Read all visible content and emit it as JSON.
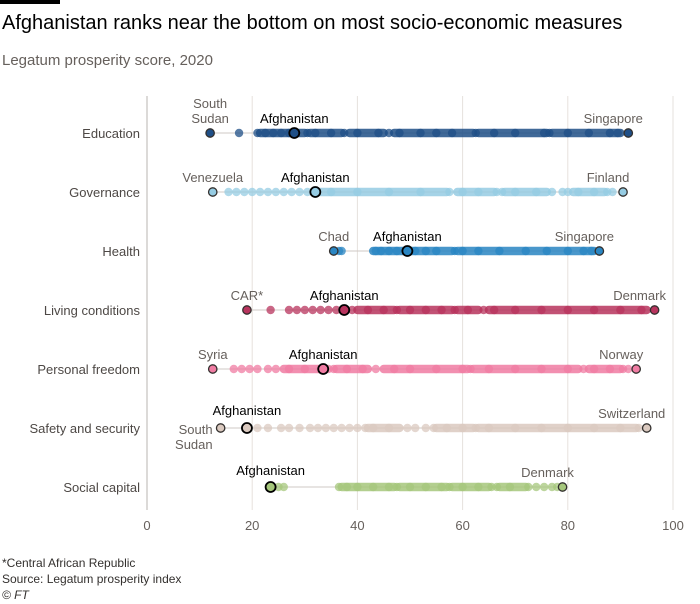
{
  "header": {
    "title": "Afghanistan ranks near the bottom on most socio-economic measures",
    "subtitle": "Legatum prosperity score, 2020"
  },
  "chart_data": {
    "type": "scatter",
    "xlim": [
      0,
      100
    ],
    "x_ticks": [
      "0",
      "20",
      "40",
      "60",
      "80",
      "100"
    ],
    "x_tick_values": [
      0,
      20,
      40,
      60,
      80,
      100
    ],
    "grid": true,
    "series": [
      {
        "name": "Education",
        "color": "#1f4f87",
        "min": 12,
        "max": 91.5,
        "afghanistan": 28,
        "min_label": "South Sudan",
        "max_label": "Singapore",
        "afghanistan_label": "Afghanistan",
        "dense_ranges": [
          [
            21.5,
            30
          ],
          [
            31,
            37
          ],
          [
            38.5,
            45
          ],
          [
            47,
            62
          ],
          [
            63,
            76
          ],
          [
            77,
            90
          ]
        ],
        "points": [
          12,
          17.5,
          21,
          22.5,
          24,
          25.5,
          27,
          30.5,
          32,
          35,
          37.5,
          40,
          44,
          46,
          48,
          52,
          55,
          58,
          62.5,
          66,
          70,
          75.5,
          76.5,
          80,
          84,
          88,
          89.5
        ]
      },
      {
        "name": "Governance",
        "color": "#96cce3",
        "min": 12.5,
        "max": 90.5,
        "afghanistan": 32,
        "min_label": "Venezuela",
        "max_label": "Finland",
        "afghanistan_label": "Afghanistan",
        "dense_ranges": [
          [
            33,
            57
          ],
          [
            59,
            66
          ],
          [
            68,
            76
          ],
          [
            81,
            87
          ]
        ],
        "points": [
          12.5,
          15.5,
          17,
          18.5,
          20,
          21.5,
          23,
          24.5,
          26,
          27.5,
          29,
          30.5,
          35,
          40,
          46,
          52,
          57.5,
          60,
          63,
          66.5,
          67.5,
          70,
          74,
          77,
          79,
          80,
          82,
          85,
          87.5,
          88.5
        ]
      },
      {
        "name": "Health",
        "color": "#2a86c3",
        "min": 35.5,
        "max": 86,
        "afghanistan": 49.5,
        "min_label": "Chad",
        "max_label": "Singapore",
        "afghanistan_label": "Afghanistan",
        "dense_ranges": [
          [
            43,
            58
          ],
          [
            59,
            85
          ]
        ],
        "points": [
          35.5,
          36.5,
          37,
          43.5,
          44.5,
          46,
          47.5,
          51,
          53,
          55,
          58.5,
          60,
          63,
          67,
          72,
          76,
          80,
          83,
          84.5
        ]
      },
      {
        "name": "Living conditions",
        "color": "#b8345e",
        "min": 19,
        "max": 96.5,
        "afghanistan": 37.5,
        "min_label": "CAR*",
        "max_label": "Denmark",
        "afghanistan_label": "Afghanistan",
        "dense_ranges": [
          [
            40,
            47
          ],
          [
            48,
            58
          ],
          [
            59,
            63
          ],
          [
            65,
            95
          ]
        ],
        "points": [
          19,
          23.5,
          27,
          28.5,
          30,
          31.5,
          33,
          34.5,
          36,
          39,
          42,
          45,
          47.5,
          50,
          53,
          56,
          58.5,
          61,
          64,
          66,
          70,
          75,
          80,
          85,
          90,
          94
        ]
      },
      {
        "name": "Personal freedom",
        "color": "#f07ca3",
        "min": 12.5,
        "max": 93,
        "afghanistan": 33.5,
        "min_label": "Syria",
        "max_label": "Norway",
        "afghanistan_label": "Afghanistan",
        "dense_ranges": [
          [
            26,
            33
          ],
          [
            36,
            42
          ],
          [
            45,
            61
          ],
          [
            62,
            82
          ],
          [
            84,
            90
          ]
        ],
        "points": [
          12.5,
          16.5,
          18,
          19.5,
          21,
          23,
          24.5,
          27,
          30,
          34.5,
          35.5,
          38,
          41,
          43.5,
          47,
          50,
          55,
          60,
          61.5,
          65,
          70,
          75,
          80,
          83,
          85,
          88,
          90.5,
          91.5
        ]
      },
      {
        "name": "Safety and security",
        "color": "#dbcac0",
        "min": 14,
        "max": 95,
        "afghanistan": 19,
        "min_label": "South Sudan",
        "max_label": "Switzerland",
        "afghanistan_label": "Afghanistan",
        "dense_ranges": [
          [
            42,
            48
          ],
          [
            55,
            62
          ],
          [
            63,
            93
          ]
        ],
        "points": [
          14,
          21,
          23,
          25.5,
          27,
          29,
          31,
          32.5,
          34,
          35.5,
          37,
          38.5,
          40,
          41.5,
          43,
          46,
          49.5,
          51,
          53,
          54.5,
          57,
          60,
          62.5,
          65,
          70,
          75,
          80,
          85,
          90,
          93.5
        ]
      },
      {
        "name": "Social capital",
        "color": "#a6c77c",
        "min": 23.5,
        "max": 79,
        "afghanistan": 23.5,
        "min_label": "",
        "max_label": "Denmark",
        "afghanistan_label": "Afghanistan",
        "dense_ranges": [
          [
            37,
            47
          ],
          [
            48,
            57
          ],
          [
            58,
            65
          ],
          [
            67,
            72
          ]
        ],
        "points": [
          23.5,
          25,
          26,
          36.5,
          38,
          40,
          43,
          46,
          47.5,
          50,
          53,
          56,
          57.5,
          60,
          63,
          65.5,
          66.5,
          69,
          72.5,
          74,
          75.5,
          77,
          78
        ]
      }
    ]
  },
  "footer": {
    "note": "*Central African Republic",
    "source": "Source: Legatum prosperity index",
    "credit": "© FT"
  }
}
